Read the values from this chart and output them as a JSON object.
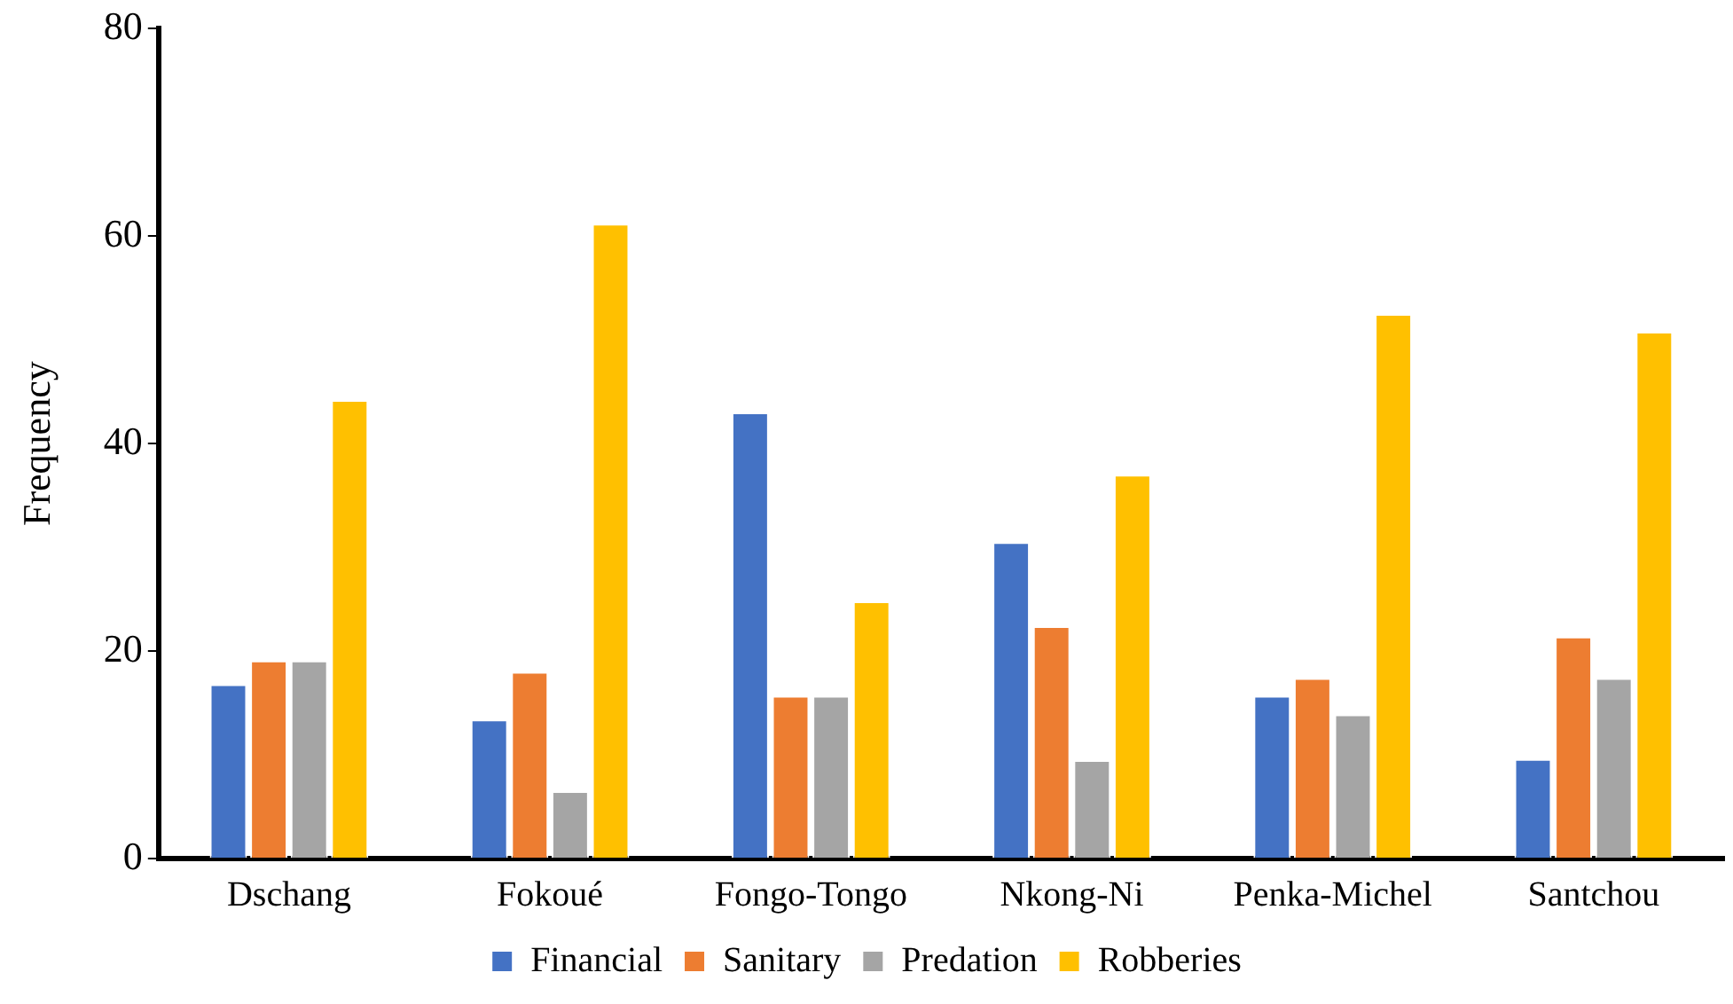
{
  "chart_data": {
    "type": "bar",
    "ylabel": "Frequency",
    "categories": [
      "Dschang",
      "Fokoué",
      "Fongo-Tongo",
      "Nkong-Ni",
      "Penka-Michel",
      "Santchou"
    ],
    "series": [
      {
        "name": "Financial",
        "color": "#4472c4",
        "values": [
          16.8,
          13.4,
          43.0,
          30.5,
          15.7,
          9.6
        ]
      },
      {
        "name": "Sanitary",
        "color": "#ed7d31",
        "values": [
          19.1,
          18.0,
          15.7,
          22.4,
          17.4,
          21.4
        ]
      },
      {
        "name": "Predation",
        "color": "#a5a5a5",
        "values": [
          19.1,
          6.5,
          15.7,
          9.5,
          13.9,
          17.4
        ]
      },
      {
        "name": "Robberies",
        "color": "#ffc000",
        "values": [
          44.2,
          61.2,
          24.8,
          37.0,
          52.5,
          50.8
        ]
      }
    ],
    "ylim": [
      0,
      80
    ],
    "yticks": [
      0,
      20,
      40,
      60,
      80
    ],
    "grid": false,
    "legend": "bottom"
  }
}
